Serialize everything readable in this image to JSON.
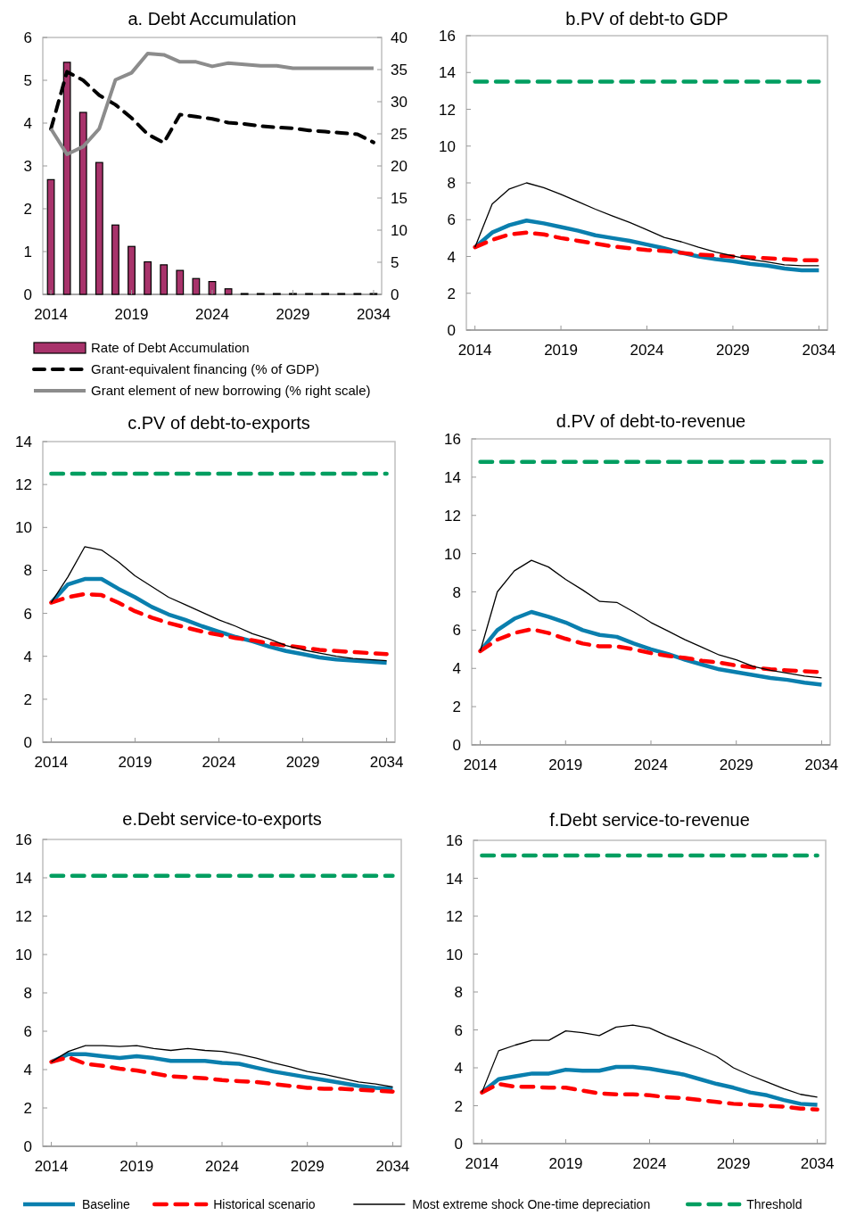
{
  "chart_data": [
    {
      "type": "bar",
      "title": "a. Debt Accumulation",
      "x": [
        2014,
        2015,
        2016,
        2017,
        2018,
        2019,
        2020,
        2021,
        2022,
        2023,
        2024,
        2025,
        2026,
        2027,
        2028,
        2029,
        2030,
        2031,
        2032,
        2033,
        2034
      ],
      "xlim": [
        2013.5,
        2034.5
      ],
      "xticks": [
        2014,
        2019,
        2024,
        2029,
        2034
      ],
      "ylim": [
        0,
        6
      ],
      "yticks": [
        0,
        1,
        2,
        3,
        4,
        5,
        6
      ],
      "y2lim": [
        0,
        40
      ],
      "y2ticks": [
        0,
        5,
        10,
        15,
        20,
        25,
        30,
        35,
        40
      ],
      "legend": "bottom",
      "series": [
        {
          "name": "Rate of Debt Accumulation",
          "type": "bar",
          "color": "#a8336b",
          "values": [
            2.68,
            5.42,
            4.25,
            3.08,
            1.62,
            1.12,
            0.76,
            0.69,
            0.56,
            0.37,
            0.3,
            0.13,
            0.02,
            0.02,
            0.02,
            0.02,
            0.02,
            0.02,
            0.02,
            0.02,
            0.02
          ]
        },
        {
          "name": "Grant-equivalent financing (% of GDP)",
          "type": "line",
          "color": "#000000",
          "line_style": "dashed",
          "values": [
            3.86,
            5.2,
            5.0,
            4.65,
            4.43,
            4.12,
            3.74,
            3.54,
            4.2,
            4.15,
            4.1,
            4.01,
            3.98,
            3.93,
            3.9,
            3.88,
            3.83,
            3.8,
            3.77,
            3.74,
            3.55
          ]
        },
        {
          "name": "Grant element of new borrowing (% right scale)",
          "type": "line",
          "color": "#8c8c8c",
          "axis": "y2",
          "values": [
            25.8,
            21.8,
            23.0,
            25.8,
            33.4,
            34.5,
            37.5,
            37.3,
            36.2,
            36.2,
            35.5,
            36.0,
            35.8,
            35.6,
            35.6,
            35.2,
            35.2,
            35.2,
            35.2,
            35.2,
            35.2
          ]
        }
      ]
    },
    {
      "type": "line",
      "title": "b.PV of debt-to GDP",
      "x": [
        2014,
        2015,
        2016,
        2017,
        2018,
        2019,
        2020,
        2021,
        2022,
        2023,
        2024,
        2025,
        2026,
        2027,
        2028,
        2029,
        2030,
        2031,
        2032,
        2033,
        2034
      ],
      "xlim": [
        2013.5,
        2034.5
      ],
      "xticks": [
        2014,
        2019,
        2024,
        2029,
        2034
      ],
      "ylim": [
        0,
        16
      ],
      "yticks": [
        0,
        2,
        4,
        6,
        8,
        10,
        12,
        14,
        16
      ],
      "series": [
        {
          "color": "#0a7fae",
          "values": [
            4.5,
            5.3,
            5.7,
            5.95,
            5.8,
            5.6,
            5.4,
            5.15,
            5.0,
            4.85,
            4.65,
            4.45,
            4.2,
            4.0,
            3.85,
            3.75,
            3.6,
            3.5,
            3.35,
            3.25,
            3.25
          ]
        },
        {
          "color": "#ff0000",
          "line_style": "dashed",
          "values": [
            4.5,
            4.9,
            5.2,
            5.3,
            5.2,
            5.0,
            4.85,
            4.7,
            4.55,
            4.45,
            4.35,
            4.3,
            4.2,
            4.1,
            4.05,
            4.0,
            3.95,
            3.9,
            3.85,
            3.8,
            3.8
          ]
        },
        {
          "color": "#000000",
          "values": [
            4.5,
            6.85,
            7.67,
            8.0,
            7.74,
            7.38,
            6.98,
            6.57,
            6.2,
            5.85,
            5.45,
            5.04,
            4.8,
            4.5,
            4.24,
            4.03,
            3.84,
            3.7,
            3.55,
            3.5,
            3.5
          ]
        },
        {
          "color": "#009e60",
          "line_style": "dashed",
          "values": [
            13.5,
            13.5,
            13.5,
            13.5,
            13.5,
            13.5,
            13.5,
            13.5,
            13.5,
            13.5,
            13.5,
            13.5,
            13.5,
            13.5,
            13.5,
            13.5,
            13.5,
            13.5,
            13.5,
            13.5,
            13.5
          ]
        }
      ]
    },
    {
      "type": "line",
      "title": "c.PV of debt-to-exports",
      "x": [
        2014,
        2015,
        2016,
        2017,
        2018,
        2019,
        2020,
        2021,
        2022,
        2023,
        2024,
        2025,
        2026,
        2027,
        2028,
        2029,
        2030,
        2031,
        2032,
        2033,
        2034
      ],
      "xlim": [
        2013.5,
        2034.5
      ],
      "xticks": [
        2014,
        2019,
        2024,
        2029,
        2034
      ],
      "ylim": [
        0,
        14
      ],
      "yticks": [
        0,
        2,
        4,
        6,
        8,
        10,
        12,
        14
      ],
      "series": [
        {
          "color": "#0a7fae",
          "values": [
            6.5,
            7.35,
            7.6,
            7.6,
            7.15,
            6.75,
            6.3,
            5.95,
            5.7,
            5.4,
            5.15,
            4.9,
            4.7,
            4.45,
            4.25,
            4.1,
            3.95,
            3.85,
            3.8,
            3.75,
            3.7
          ]
        },
        {
          "color": "#ff0000",
          "line_style": "dashed",
          "values": [
            6.5,
            6.75,
            6.9,
            6.85,
            6.5,
            6.1,
            5.8,
            5.55,
            5.35,
            5.15,
            5.0,
            4.85,
            4.75,
            4.6,
            4.5,
            4.4,
            4.3,
            4.25,
            4.2,
            4.15,
            4.1
          ]
        },
        {
          "color": "#000000",
          "values": [
            6.5,
            7.7,
            9.1,
            8.95,
            8.4,
            7.75,
            7.25,
            6.75,
            6.4,
            6.05,
            5.7,
            5.4,
            5.05,
            4.8,
            4.5,
            4.3,
            4.15,
            4.0,
            3.9,
            3.85,
            3.8
          ]
        },
        {
          "color": "#009e60",
          "line_style": "dashed",
          "values": [
            12.5,
            12.5,
            12.5,
            12.5,
            12.5,
            12.5,
            12.5,
            12.5,
            12.5,
            12.5,
            12.5,
            12.5,
            12.5,
            12.5,
            12.5,
            12.5,
            12.5,
            12.5,
            12.5,
            12.5,
            12.5
          ]
        }
      ]
    },
    {
      "type": "line",
      "title": "d.PV of debt-to-revenue",
      "x": [
        2014,
        2015,
        2016,
        2017,
        2018,
        2019,
        2020,
        2021,
        2022,
        2023,
        2024,
        2025,
        2026,
        2027,
        2028,
        2029,
        2030,
        2031,
        2032,
        2033,
        2034
      ],
      "xlim": [
        2013.5,
        2034.5
      ],
      "xticks": [
        2014,
        2019,
        2024,
        2029,
        2034
      ],
      "ylim": [
        0,
        16
      ],
      "yticks": [
        0,
        2,
        4,
        6,
        8,
        10,
        12,
        14,
        16
      ],
      "series": [
        {
          "color": "#0a7fae",
          "values": [
            4.9,
            6.0,
            6.6,
            6.95,
            6.7,
            6.4,
            6.0,
            5.75,
            5.65,
            5.3,
            5.0,
            4.75,
            4.45,
            4.2,
            3.95,
            3.8,
            3.65,
            3.5,
            3.4,
            3.25,
            3.15
          ]
        },
        {
          "color": "#ff0000",
          "line_style": "dashed",
          "values": [
            4.9,
            5.5,
            5.85,
            6.05,
            5.85,
            5.55,
            5.3,
            5.15,
            5.15,
            5.0,
            4.8,
            4.65,
            4.55,
            4.4,
            4.3,
            4.15,
            4.05,
            3.95,
            3.9,
            3.85,
            3.8
          ]
        },
        {
          "color": "#000000",
          "values": [
            4.9,
            8.0,
            9.1,
            9.65,
            9.3,
            8.65,
            8.1,
            7.5,
            7.45,
            6.95,
            6.4,
            5.95,
            5.5,
            5.1,
            4.7,
            4.45,
            4.1,
            3.9,
            3.75,
            3.6,
            3.5
          ]
        },
        {
          "color": "#009e60",
          "line_style": "dashed",
          "values": [
            14.8,
            14.8,
            14.8,
            14.8,
            14.8,
            14.8,
            14.8,
            14.8,
            14.8,
            14.8,
            14.8,
            14.8,
            14.8,
            14.8,
            14.8,
            14.8,
            14.8,
            14.8,
            14.8,
            14.8,
            14.8
          ]
        }
      ]
    },
    {
      "type": "line",
      "title": "e.Debt service-to-exports",
      "x": [
        2014,
        2015,
        2016,
        2017,
        2018,
        2019,
        2020,
        2021,
        2022,
        2023,
        2024,
        2025,
        2026,
        2027,
        2028,
        2029,
        2030,
        2031,
        2032,
        2033,
        2034
      ],
      "xlim": [
        2013.5,
        2034.5
      ],
      "xticks": [
        2014,
        2019,
        2024,
        2029,
        2034
      ],
      "ylim": [
        0,
        16
      ],
      "yticks": [
        0,
        2,
        4,
        6,
        8,
        10,
        12,
        14,
        16
      ],
      "legend": "bottom",
      "series": [
        {
          "name": "Baseline",
          "color": "#0a7fae",
          "values": [
            4.4,
            4.8,
            4.8,
            4.7,
            4.6,
            4.7,
            4.6,
            4.45,
            4.45,
            4.45,
            4.35,
            4.3,
            4.1,
            3.9,
            3.75,
            3.6,
            3.45,
            3.3,
            3.15,
            3.05,
            3.0
          ]
        },
        {
          "name": "Historical scenario",
          "color": "#ff0000",
          "line_style": "dashed",
          "values": [
            4.4,
            4.65,
            4.3,
            4.2,
            4.05,
            3.95,
            3.8,
            3.65,
            3.6,
            3.55,
            3.45,
            3.4,
            3.35,
            3.25,
            3.15,
            3.05,
            3.0,
            3.0,
            2.95,
            2.9,
            2.85
          ]
        },
        {
          "name": "Most extreme shock  One-time depreciation",
          "color": "#000000",
          "values": [
            4.4,
            4.95,
            5.25,
            5.25,
            5.2,
            5.25,
            5.1,
            5.0,
            5.1,
            5.0,
            4.95,
            4.8,
            4.6,
            4.35,
            4.15,
            3.9,
            3.75,
            3.55,
            3.35,
            3.25,
            3.1
          ]
        },
        {
          "name": "Threshold",
          "color": "#009e60",
          "line_style": "dashed",
          "values": [
            14.1,
            14.1,
            14.1,
            14.1,
            14.1,
            14.1,
            14.1,
            14.1,
            14.1,
            14.1,
            14.1,
            14.1,
            14.1,
            14.1,
            14.1,
            14.1,
            14.1,
            14.1,
            14.1,
            14.1,
            14.1
          ]
        }
      ]
    },
    {
      "type": "line",
      "title": "f.Debt service-to-revenue",
      "x": [
        2014,
        2015,
        2016,
        2017,
        2018,
        2019,
        2020,
        2021,
        2022,
        2023,
        2024,
        2025,
        2026,
        2027,
        2028,
        2029,
        2030,
        2031,
        2032,
        2033,
        2034
      ],
      "xlim": [
        2013.5,
        2034.5
      ],
      "xticks": [
        2014,
        2019,
        2024,
        2029,
        2034
      ],
      "ylim": [
        0,
        16
      ],
      "yticks": [
        0,
        2,
        4,
        6,
        8,
        10,
        12,
        14,
        16
      ],
      "series": [
        {
          "color": "#0a7fae",
          "values": [
            2.7,
            3.4,
            3.55,
            3.7,
            3.7,
            3.9,
            3.85,
            3.85,
            4.05,
            4.05,
            3.95,
            3.8,
            3.65,
            3.4,
            3.15,
            2.95,
            2.7,
            2.55,
            2.3,
            2.1,
            2.05
          ]
        },
        {
          "color": "#ff0000",
          "line_style": "dashed",
          "values": [
            2.7,
            3.15,
            3.0,
            3.0,
            2.95,
            2.95,
            2.8,
            2.65,
            2.6,
            2.6,
            2.55,
            2.45,
            2.4,
            2.3,
            2.2,
            2.1,
            2.05,
            2.0,
            1.95,
            1.85,
            1.8
          ]
        },
        {
          "color": "#000000",
          "values": [
            2.7,
            4.9,
            5.2,
            5.45,
            5.45,
            5.95,
            5.85,
            5.7,
            6.15,
            6.25,
            6.1,
            5.7,
            5.35,
            5.0,
            4.6,
            4.0,
            3.6,
            3.25,
            2.9,
            2.6,
            2.45
          ]
        },
        {
          "color": "#009e60",
          "line_style": "dashed",
          "values": [
            15.2,
            15.2,
            15.2,
            15.2,
            15.2,
            15.2,
            15.2,
            15.2,
            15.2,
            15.2,
            15.2,
            15.2,
            15.2,
            15.2,
            15.2,
            15.2,
            15.2,
            15.2,
            15.2,
            15.2,
            15.2
          ]
        }
      ]
    }
  ]
}
